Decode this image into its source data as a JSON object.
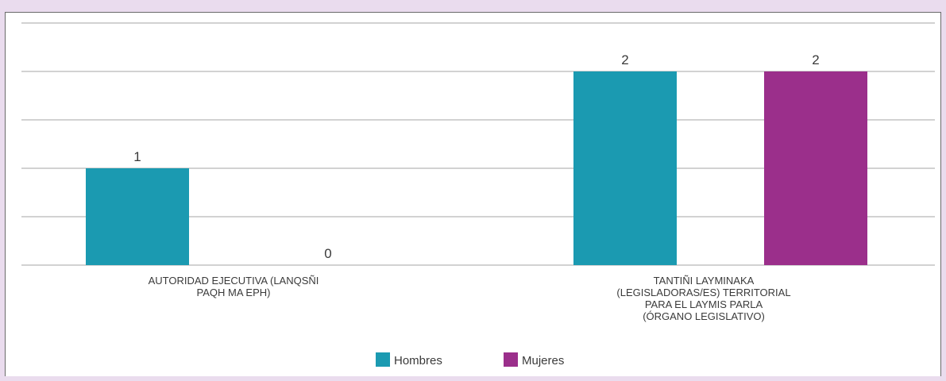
{
  "chart_data": {
    "type": "bar",
    "categories": [
      "AUTORIDAD EJECUTIVA (LANQSÑI PAQH MA EPH)",
      "TANTIÑI LAYMINAKA (LEGISLADORAS/ES) TERRITORIAL PARA EL LAYMIS PARLA (ÓRGANO LEGISLATIVO)"
    ],
    "category_lines": [
      [
        "AUTORIDAD EJECUTIVA (LANQSÑI",
        "PAQH MA EPH)"
      ],
      [
        "TANTIÑI LAYMINAKA",
        "(LEGISLADORAS/ES) TERRITORIAL",
        "PARA EL LAYMIS PARLA",
        "(ÓRGANO LEGISLATIVO)"
      ]
    ],
    "series": [
      {
        "name": "Hombres",
        "values": [
          1,
          2
        ],
        "labels": [
          "1",
          "2"
        ],
        "color": "#1b9ab1"
      },
      {
        "name": "Mujeres",
        "values": [
          0,
          2
        ],
        "labels": [
          "0",
          "2"
        ],
        "color": "#9b2f8b"
      }
    ],
    "ylim": [
      0,
      2.5
    ],
    "grid": true,
    "legend_position": "bottom-center",
    "gridline_color": "#a6a6a6",
    "label_color": "#3a3a3a"
  }
}
